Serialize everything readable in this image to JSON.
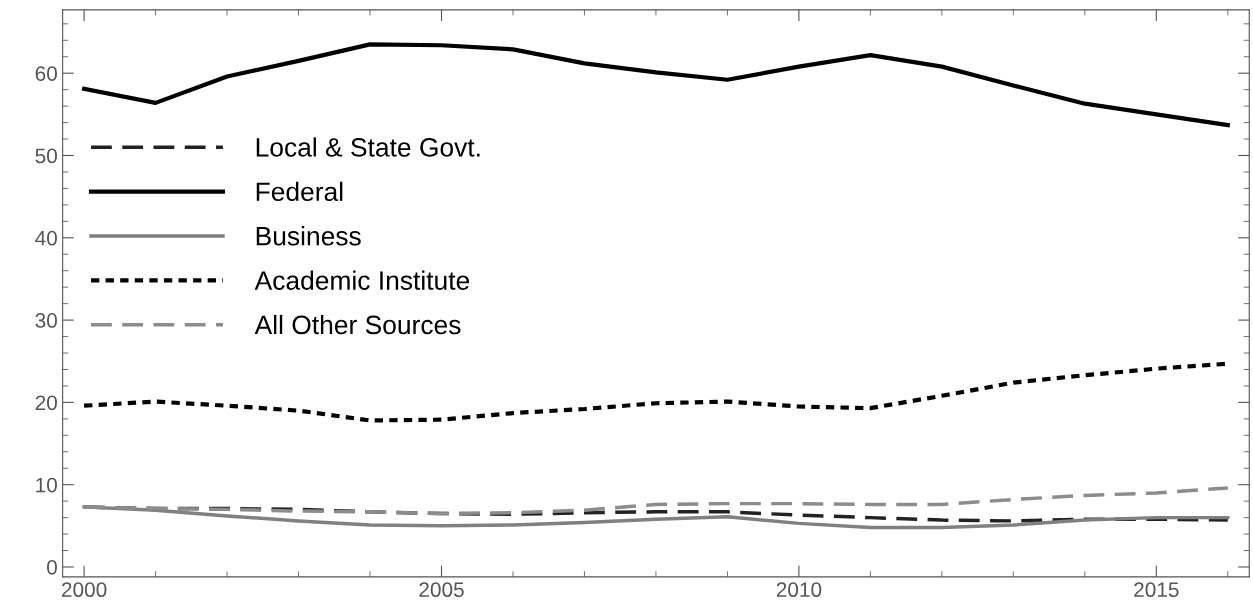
{
  "chart_data": {
    "type": "line",
    "x": [
      2000,
      2001,
      2002,
      2003,
      2004,
      2005,
      2006,
      2007,
      2008,
      2009,
      2010,
      2011,
      2012,
      2013,
      2014,
      2015,
      2016
    ],
    "xlim": [
      1999.7,
      2016.3
    ],
    "ylim": [
      -1.2,
      67.7
    ],
    "xticks": [
      2000,
      2005,
      2010,
      2015
    ],
    "yticks": [
      0,
      10,
      20,
      30,
      40,
      50,
      60
    ],
    "grid": false,
    "legend": "top left",
    "marker": "none",
    "series": [
      {
        "name": "Local & State Govt.",
        "color": "#222222",
        "line_style": "dashed",
        "values": [
          7.3,
          7.1,
          7.1,
          7.0,
          6.7,
          6.5,
          6.4,
          6.6,
          6.7,
          6.7,
          6.3,
          6.0,
          5.7,
          5.6,
          5.8,
          5.8,
          5.7
        ]
      },
      {
        "name": "Federal",
        "color": "#000000",
        "line_style": "solid",
        "values": [
          58.1,
          56.4,
          59.6,
          61.5,
          63.5,
          63.4,
          62.9,
          61.2,
          60.1,
          59.2,
          60.8,
          62.2,
          60.8,
          58.5,
          56.3,
          55.0,
          53.7
        ]
      },
      {
        "name": "Business",
        "color": "#808080",
        "line_style": "solid",
        "values": [
          7.3,
          6.9,
          6.2,
          5.6,
          5.1,
          5.0,
          5.1,
          5.4,
          5.8,
          6.1,
          5.3,
          4.8,
          4.8,
          5.1,
          5.7,
          6.0,
          6.0
        ]
      },
      {
        "name": "Academic Institute",
        "color": "#000000",
        "line_style": "dotted",
        "values": [
          19.6,
          20.1,
          19.6,
          19.0,
          17.8,
          17.9,
          18.7,
          19.2,
          19.9,
          20.1,
          19.5,
          19.3,
          20.8,
          22.4,
          23.3,
          24.1,
          24.7
        ]
      },
      {
        "name": "All Other Sources",
        "color": "#8c8c8c",
        "line_style": "dashed",
        "values": [
          7.3,
          7.1,
          7.0,
          6.8,
          6.7,
          6.5,
          6.6,
          6.9,
          7.6,
          7.7,
          7.7,
          7.6,
          7.6,
          8.2,
          8.7,
          9.0,
          9.6
        ]
      }
    ]
  }
}
